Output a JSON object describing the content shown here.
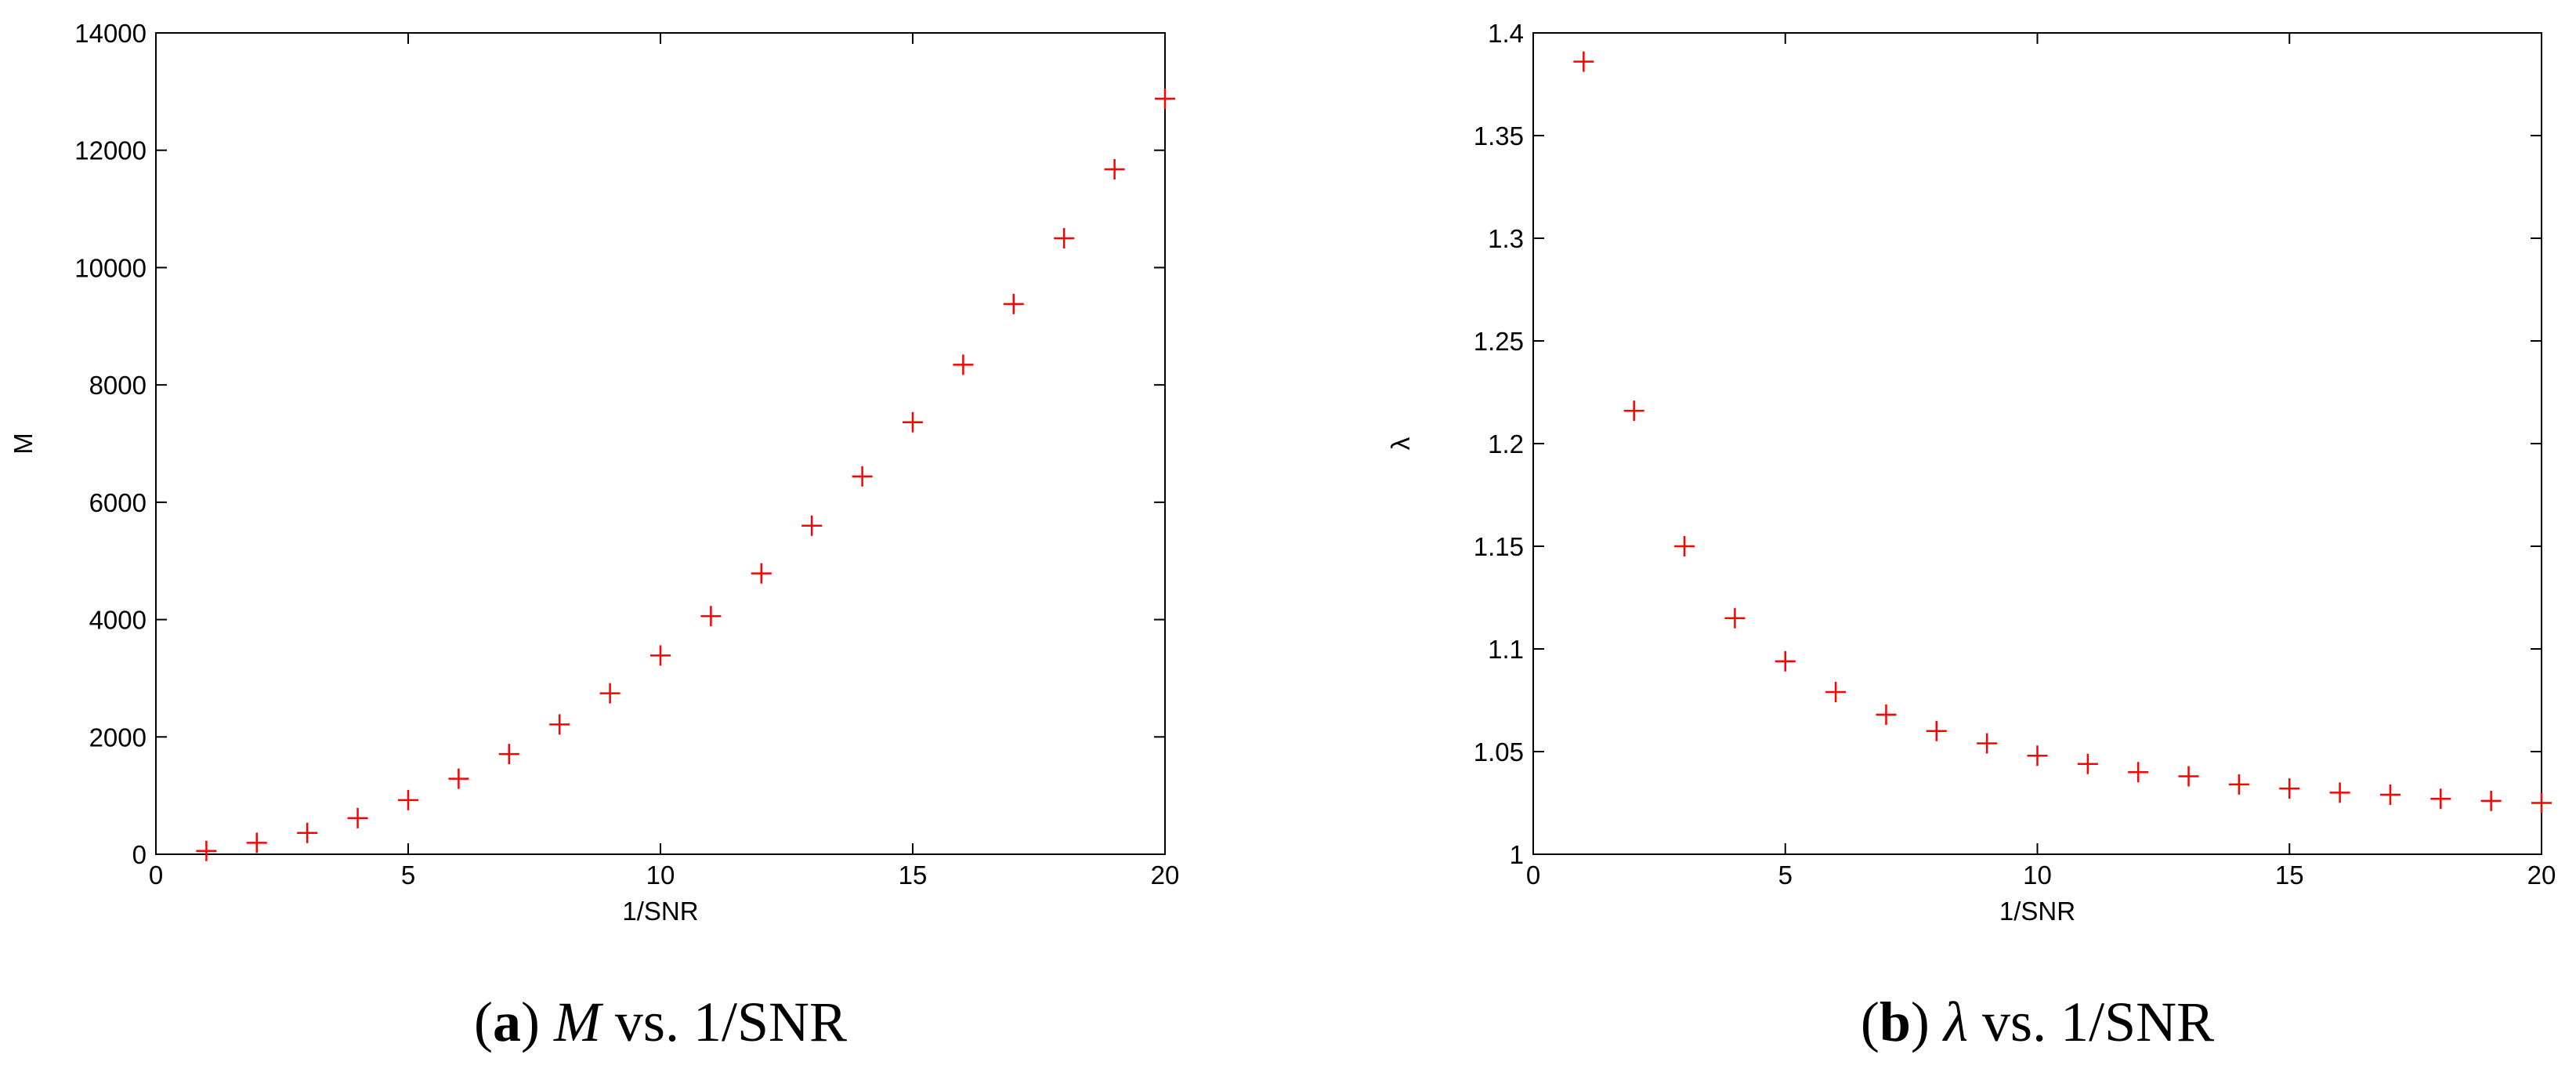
{
  "chart_data": [
    {
      "type": "scatter",
      "marker": "+",
      "color": "#ff0000",
      "xlabel": "1/SNR",
      "ylabel": "M",
      "caption": [
        "(",
        "a",
        ") ",
        "M",
        " vs. 1/SNR"
      ],
      "x": [
        1,
        2,
        3,
        4,
        5,
        6,
        7,
        8,
        9,
        10,
        11,
        12,
        13,
        14,
        15,
        16,
        17,
        18,
        19,
        20
      ],
      "values": [
        56,
        196,
        364,
        616,
        924,
        1288,
        1708,
        2212,
        2744,
        3388,
        4060,
        4788,
        5600,
        6440,
        7364,
        8344,
        9380,
        10500,
        11676,
        12880
      ],
      "xlim": [
        0,
        20
      ],
      "xticks": [
        0,
        5,
        10,
        15,
        20
      ],
      "ylim": [
        0,
        14000
      ],
      "yticks": [
        0,
        2000,
        4000,
        6000,
        8000,
        10000,
        12000,
        14000
      ]
    },
    {
      "type": "scatter",
      "marker": "+",
      "color": "#ff0000",
      "xlabel": "1/SNR",
      "ylabel": "λ",
      "caption": [
        "(",
        "b",
        ") ",
        "λ",
        " vs. 1/SNR"
      ],
      "x": [
        1,
        2,
        3,
        4,
        5,
        6,
        7,
        8,
        9,
        10,
        11,
        12,
        13,
        14,
        15,
        16,
        17,
        18,
        19,
        20
      ],
      "values": [
        1.386,
        1.216,
        1.15,
        1.115,
        1.094,
        1.079,
        1.068,
        1.06,
        1.054,
        1.048,
        1.044,
        1.04,
        1.038,
        1.034,
        1.032,
        1.03,
        1.029,
        1.027,
        1.026,
        1.025
      ],
      "xlim": [
        0,
        20
      ],
      "xticks": [
        0,
        5,
        10,
        15,
        20
      ],
      "ylim": [
        1,
        1.4
      ],
      "yticks": [
        1,
        1.05,
        1.1,
        1.15,
        1.2,
        1.25,
        1.3,
        1.35,
        1.4
      ]
    }
  ]
}
